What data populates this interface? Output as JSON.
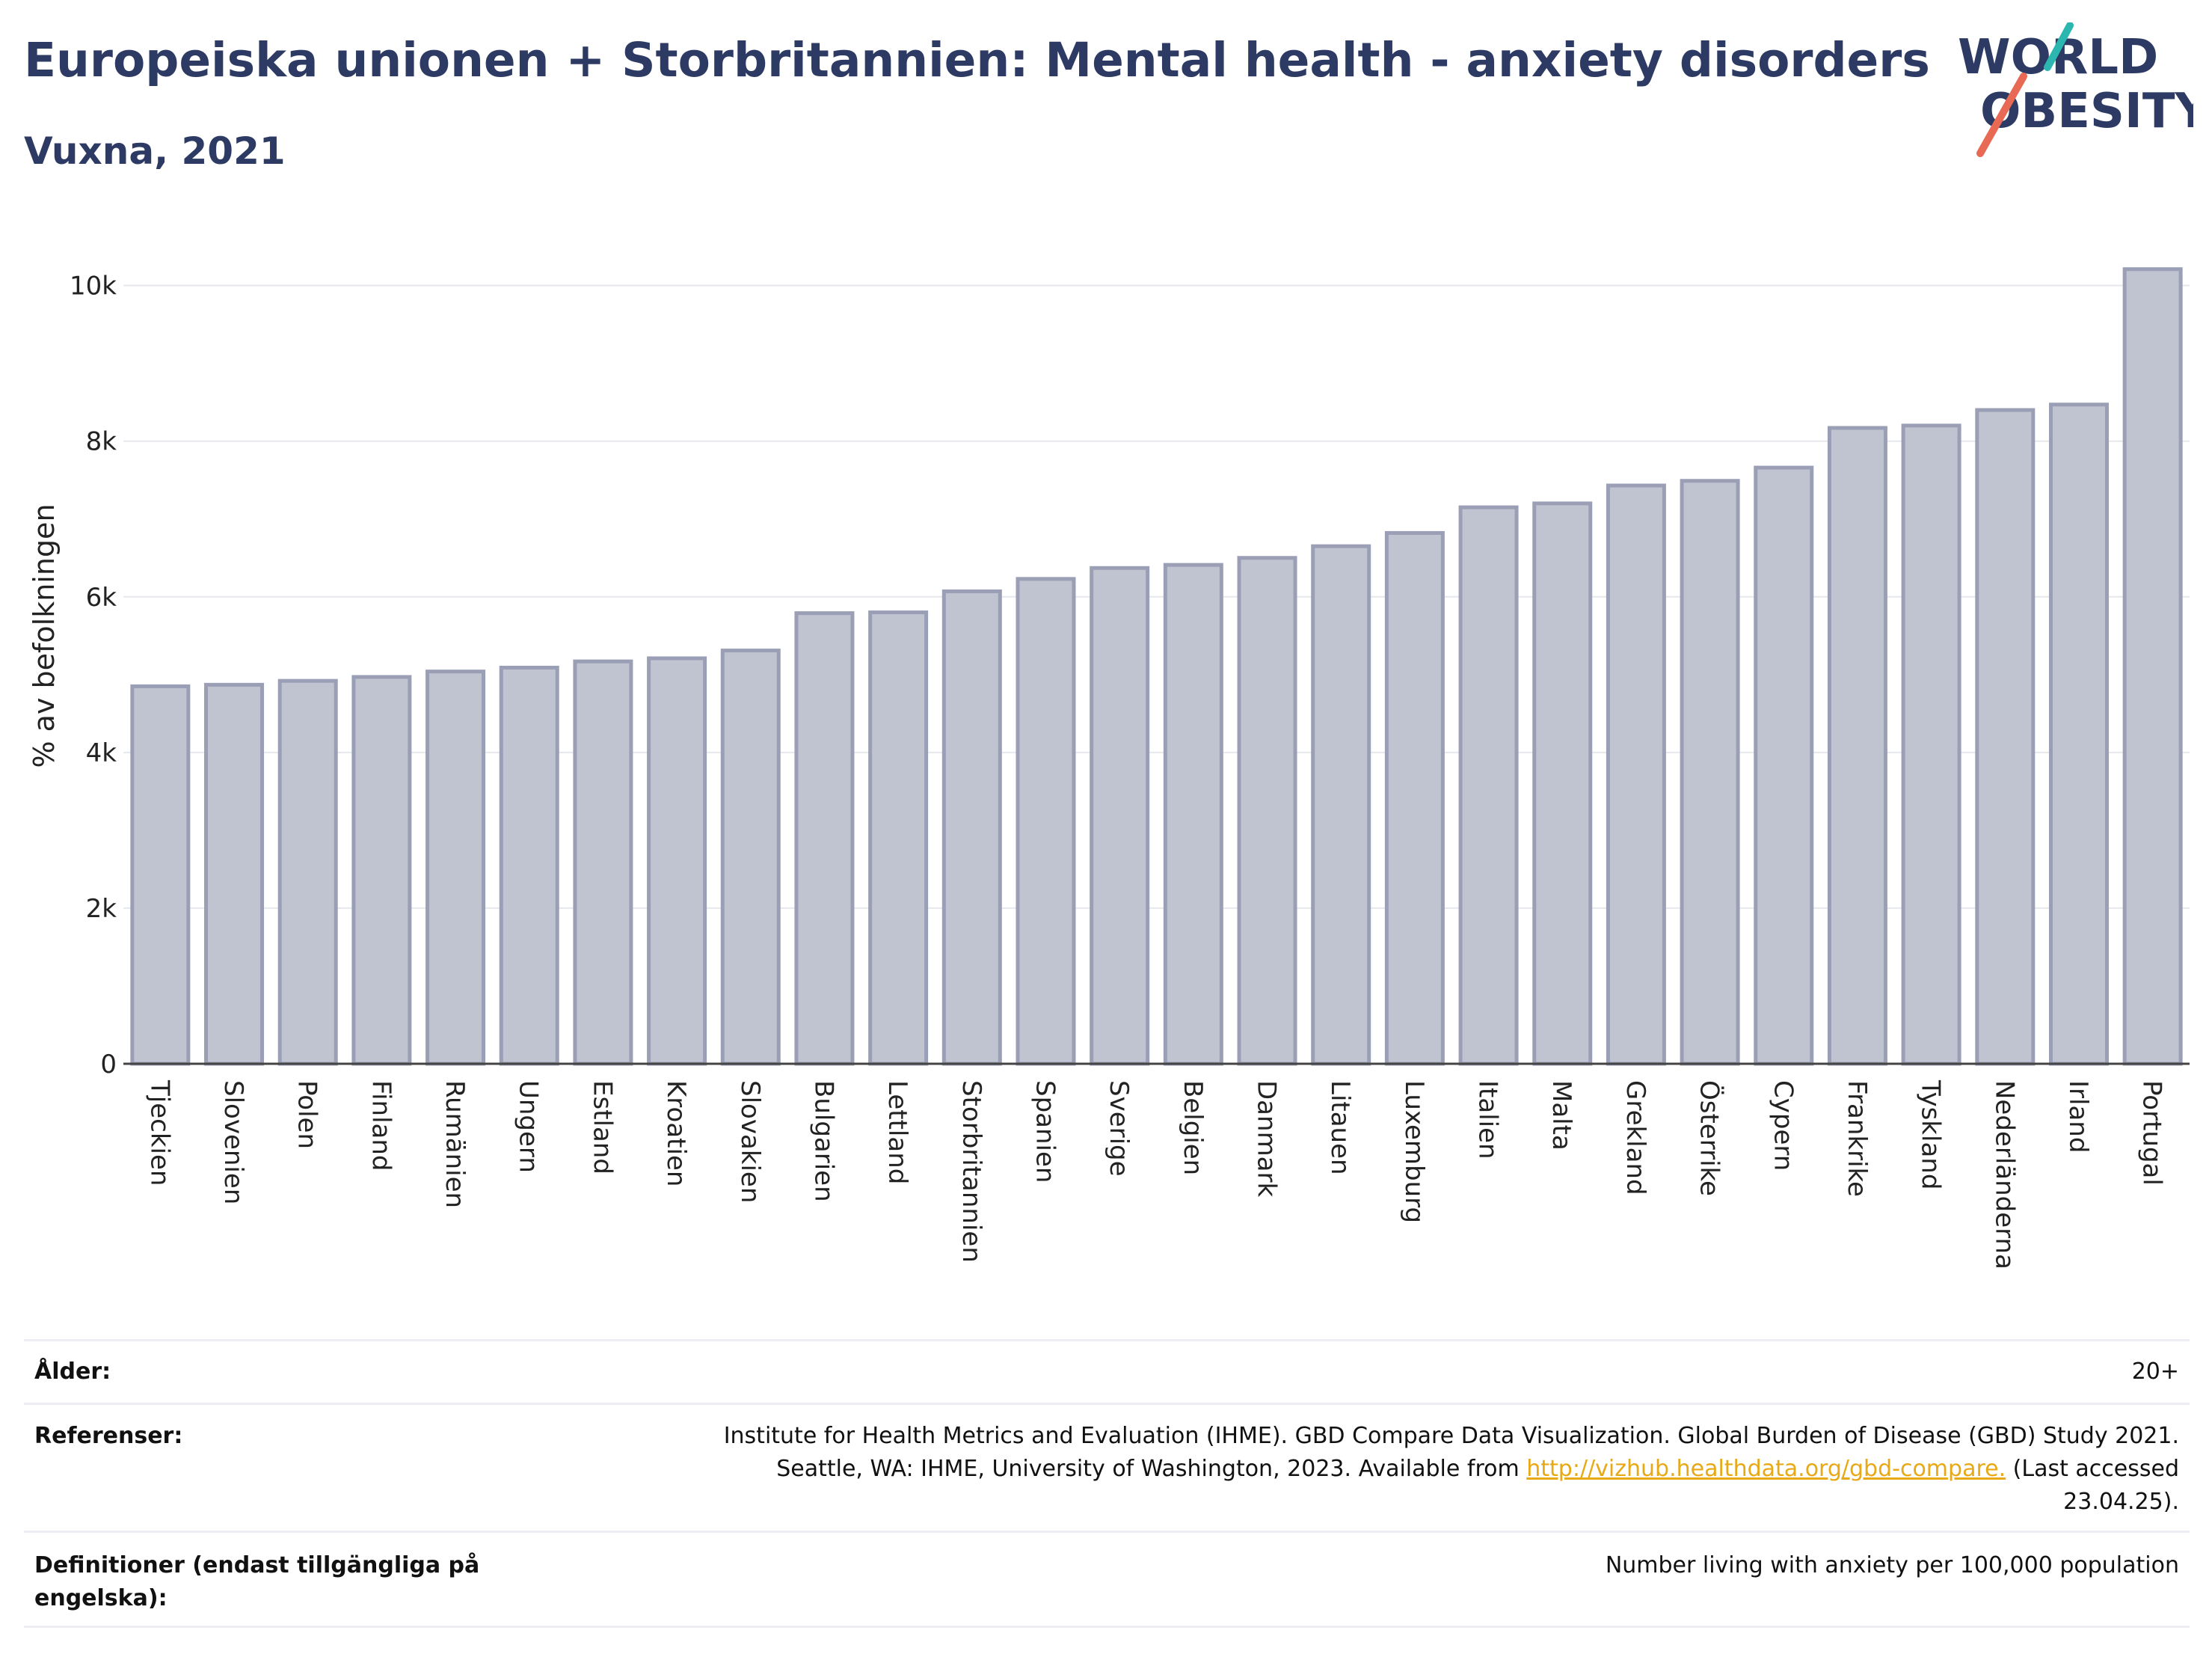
{
  "header": {
    "title": "Europeiska unionen + Storbritannien: Mental health - anxiety disorders",
    "subtitle": "Vuxna, 2021"
  },
  "logo": {
    "line1": "WORLD",
    "line2": "OBESITY"
  },
  "colors": {
    "bar_fill": "#c0c3d0",
    "bar_stroke": "#9a9fb6",
    "title": "#2d3a63",
    "logo_teal": "#2bb7b0",
    "logo_red": "#e86a55",
    "link": "#e7a915"
  },
  "chart_data": {
    "type": "bar",
    "ylabel": "% av befolkningen",
    "ylim": [
      0,
      10400
    ],
    "yticks": [
      0,
      2000,
      4000,
      6000,
      8000,
      10000
    ],
    "ytick_labels": [
      "0",
      "2k",
      "4k",
      "6k",
      "8k",
      "10k"
    ],
    "grid": true,
    "categories": [
      "Tjeckien",
      "Slovenien",
      "Polen",
      "Finland",
      "Rumänien",
      "Ungern",
      "Estland",
      "Kroatien",
      "Slovakien",
      "Bulgarien",
      "Lettland",
      "Storbritannien",
      "Spanien",
      "Sverige",
      "Belgien",
      "Danmark",
      "Litauen",
      "Luxemburg",
      "Italien",
      "Malta",
      "Grekland",
      "Österrike",
      "Cypern",
      "Frankrike",
      "Tyskland",
      "Nederländerna",
      "Irland",
      "Portugal"
    ],
    "values": [
      4850,
      4870,
      4920,
      4970,
      5040,
      5090,
      5170,
      5210,
      5310,
      5790,
      5800,
      6070,
      6230,
      6370,
      6410,
      6500,
      6650,
      6820,
      7150,
      7200,
      7430,
      7490,
      7660,
      8170,
      8200,
      8400,
      8470,
      10210
    ]
  },
  "info": {
    "age_label": "Ålder:",
    "age_value": "20+",
    "ref_label": "Referenser:",
    "ref_text1": "Institute for Health Metrics and Evaluation (IHME). GBD Compare Data Visualization. Global Burden of Disease (GBD) Study 2021.",
    "ref_text2": "Seattle, WA: IHME, University of Washington, 2023. Available from",
    "ref_link": "http://vizhub.healthdata.org/gbd-compare.",
    "ref_text3": "(Last accessed",
    "ref_text4": "23.04.25).",
    "def_label": "Definitioner (endast tillgängliga på engelska):",
    "def_value": "Number living with anxiety per 100,000 population"
  }
}
